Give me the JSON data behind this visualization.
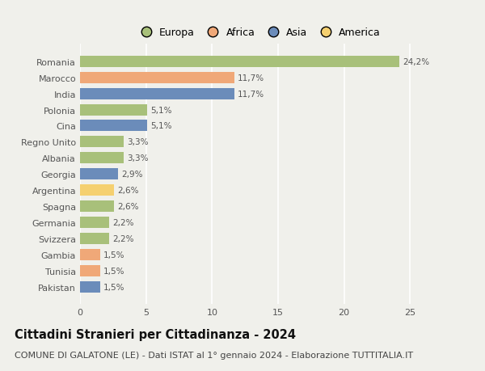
{
  "categories": [
    "Romania",
    "Marocco",
    "India",
    "Polonia",
    "Cina",
    "Regno Unito",
    "Albania",
    "Georgia",
    "Argentina",
    "Spagna",
    "Germania",
    "Svizzera",
    "Gambia",
    "Tunisia",
    "Pakistan"
  ],
  "values": [
    24.2,
    11.7,
    11.7,
    5.1,
    5.1,
    3.3,
    3.3,
    2.9,
    2.6,
    2.6,
    2.2,
    2.2,
    1.5,
    1.5,
    1.5
  ],
  "labels": [
    "24,2%",
    "11,7%",
    "11,7%",
    "5,1%",
    "5,1%",
    "3,3%",
    "3,3%",
    "2,9%",
    "2,6%",
    "2,6%",
    "2,2%",
    "2,2%",
    "1,5%",
    "1,5%",
    "1,5%"
  ],
  "regions": [
    "Europa",
    "Africa",
    "Asia",
    "Europa",
    "Asia",
    "Europa",
    "Europa",
    "Asia",
    "America",
    "Europa",
    "Europa",
    "Europa",
    "Africa",
    "Africa",
    "Asia"
  ],
  "colors": {
    "Europa": "#a8c07a",
    "Africa": "#f0a878",
    "Asia": "#6b8cba",
    "America": "#f5d070"
  },
  "xlim": [
    0,
    27
  ],
  "xticks": [
    0,
    5,
    10,
    15,
    20,
    25
  ],
  "title": "Cittadini Stranieri per Cittadinanza - 2024",
  "subtitle": "COMUNE DI GALATONE (LE) - Dati ISTAT al 1° gennaio 2024 - Elaborazione TUTTITALIA.IT",
  "background_color": "#f0f0eb",
  "grid_color": "#ffffff",
  "bar_height": 0.7,
  "title_fontsize": 10.5,
  "subtitle_fontsize": 8,
  "label_fontsize": 7.5,
  "tick_fontsize": 8,
  "legend_order": [
    "Europa",
    "Africa",
    "Asia",
    "America"
  ]
}
